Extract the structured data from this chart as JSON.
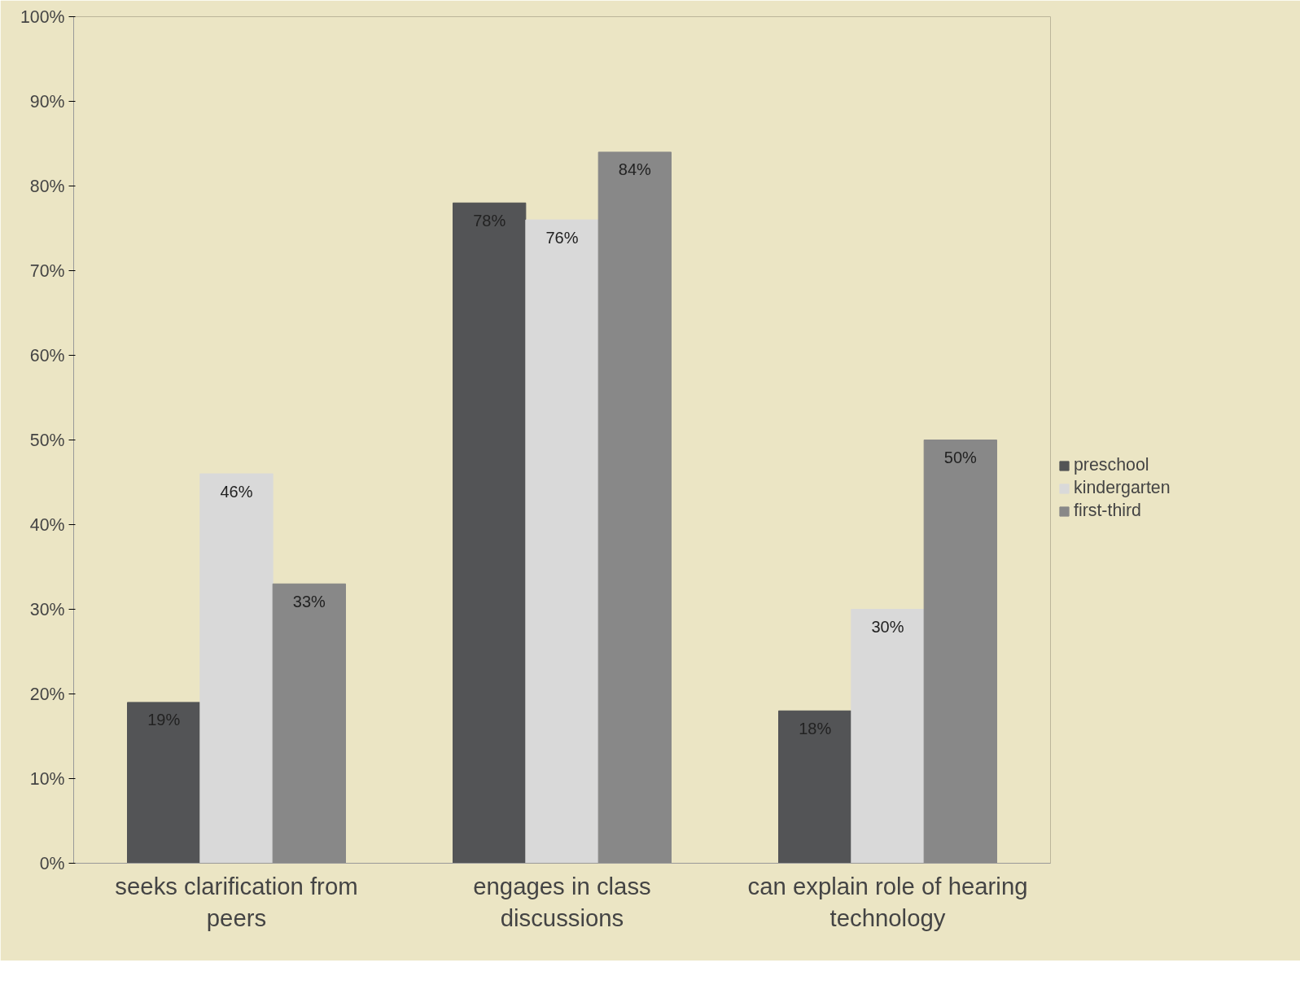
{
  "chart_data": {
    "type": "bar",
    "categories": [
      "seeks clarification from peers",
      "engages in class discussions",
      "can explain role of hearing technology"
    ],
    "series": [
      {
        "name": "preschool",
        "color": "#535456",
        "values": [
          19,
          78,
          18
        ]
      },
      {
        "name": "kindergarten",
        "color": "#d9d9d9",
        "values": [
          46,
          76,
          30
        ]
      },
      {
        "name": "first-third",
        "color": "#888888",
        "values": [
          33,
          84,
          50
        ]
      }
    ],
    "ylim": [
      0,
      100
    ],
    "yticks": [
      {
        "value": 0,
        "label": "0%"
      },
      {
        "value": 10,
        "label": "10%"
      },
      {
        "value": 20,
        "label": "20%"
      },
      {
        "value": 30,
        "label": "30%"
      },
      {
        "value": 40,
        "label": "40%"
      },
      {
        "value": 50,
        "label": "50%"
      },
      {
        "value": 60,
        "label": "60%"
      },
      {
        "value": 70,
        "label": "70%"
      },
      {
        "value": 80,
        "label": "80%"
      },
      {
        "value": 90,
        "label": "90%"
      },
      {
        "value": 100,
        "label": "100%"
      }
    ],
    "value_labels": [
      [
        "19%",
        "78%",
        "18%"
      ],
      [
        "46%",
        "76%",
        "30%"
      ],
      [
        "33%",
        "84%",
        "50%"
      ]
    ],
    "grid": false,
    "legend": "right"
  }
}
